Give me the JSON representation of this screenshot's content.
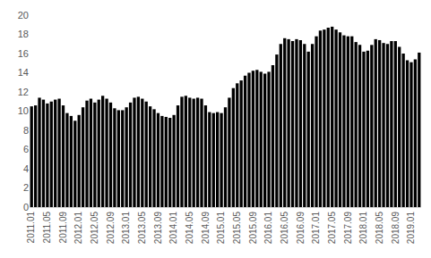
{
  "chart_data": {
    "type": "bar",
    "categories": [
      "2011.01",
      null,
      null,
      null,
      "2011.05",
      null,
      null,
      null,
      "2011.09",
      null,
      null,
      null,
      "2012.01",
      null,
      null,
      null,
      "2012.05",
      null,
      null,
      null,
      "2012.09",
      null,
      null,
      null,
      "2013.01",
      null,
      null,
      null,
      "2013.05",
      null,
      null,
      null,
      "2013.09",
      null,
      null,
      null,
      "2014.01",
      null,
      null,
      null,
      "2014.05",
      null,
      null,
      null,
      "2014.09",
      null,
      null,
      null,
      "2015.01",
      null,
      null,
      null,
      "2015.05",
      null,
      null,
      null,
      "2015.09",
      null,
      null,
      null,
      "2016.01",
      null,
      null,
      null,
      "2016.05",
      null,
      null,
      null,
      "2016.09",
      null,
      null,
      null,
      "2017.01",
      null,
      null,
      null,
      "2017.05",
      null,
      null,
      null,
      "2017.09",
      null,
      null,
      null,
      "2018.01",
      null,
      null,
      null,
      "2018.05",
      null,
      null,
      null,
      "2018.09",
      null,
      null,
      null,
      "2019.01",
      null,
      null
    ],
    "values": [
      10.5,
      10.6,
      11.4,
      11.2,
      10.8,
      11.0,
      11.2,
      11.3,
      10.6,
      9.8,
      9.5,
      9.0,
      9.6,
      10.4,
      11.1,
      11.3,
      10.9,
      11.2,
      11.6,
      11.3,
      10.9,
      10.3,
      10.1,
      10.1,
      10.4,
      10.9,
      11.4,
      11.5,
      11.3,
      11.0,
      10.5,
      10.2,
      9.8,
      9.5,
      9.4,
      9.3,
      9.6,
      10.6,
      11.5,
      11.6,
      11.4,
      11.3,
      11.4,
      11.3,
      10.6,
      9.9,
      9.8,
      9.9,
      9.8,
      10.4,
      11.4,
      12.4,
      12.9,
      13.2,
      13.7,
      14.0,
      14.2,
      14.3,
      14.1,
      13.9,
      14.1,
      14.8,
      15.9,
      17.0,
      17.6,
      17.5,
      17.3,
      17.5,
      17.4,
      17.0,
      16.2,
      17.0,
      17.8,
      18.4,
      18.5,
      18.7,
      18.8,
      18.5,
      18.2,
      17.9,
      17.8,
      17.8,
      17.2,
      16.9,
      16.2,
      16.3,
      16.9,
      17.5,
      17.4,
      17.1,
      17.0,
      17.3,
      17.3,
      16.7,
      16.0,
      15.3,
      15.1,
      15.4,
      16.1
    ],
    "color": "#000000",
    "ylim": [
      0,
      20
    ],
    "yticks": [
      0,
      2,
      4,
      6,
      8,
      10,
      12,
      14,
      16,
      18,
      20
    ],
    "grid": false
  }
}
